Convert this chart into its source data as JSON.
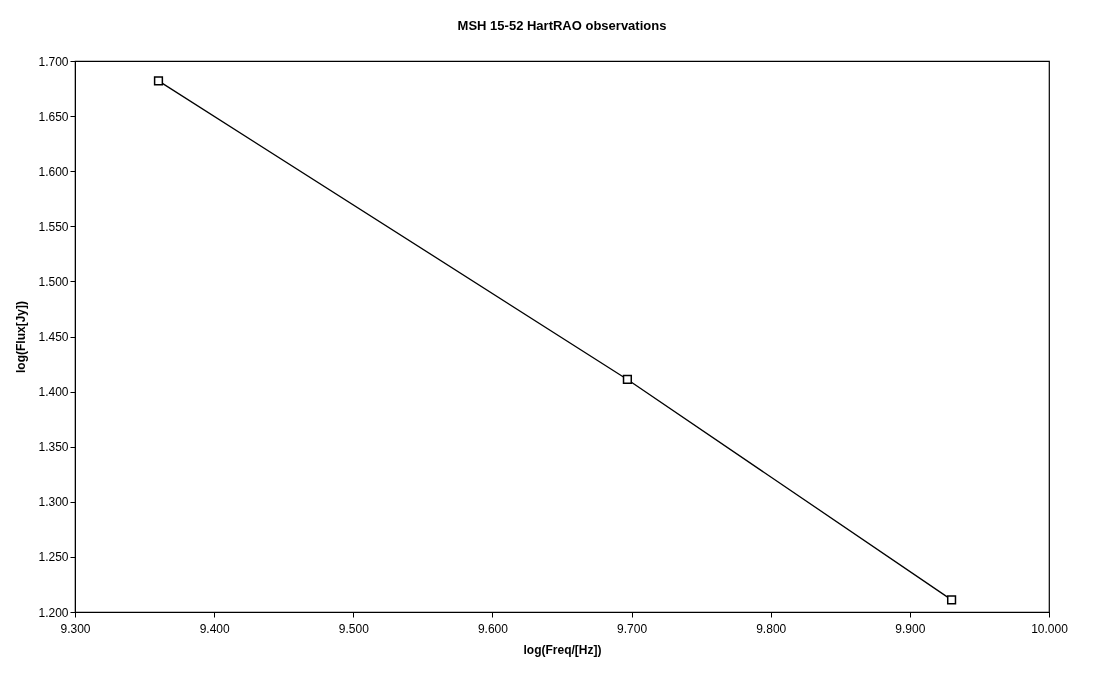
{
  "chart_data": {
    "type": "line",
    "title": "MSH 15-52 HartRAO observations",
    "xlabel": "log(Freq/[Hz])",
    "ylabel": "log(Flux[Jy])",
    "x": [
      9.36,
      9.697,
      9.93
    ],
    "series": [
      {
        "color": "#000000",
        "values": [
          1.682,
          1.411,
          1.211
        ]
      }
    ],
    "xlim": [
      9.3,
      10.0
    ],
    "xticks": [
      {
        "value": 9.3,
        "label": "9.300"
      },
      {
        "value": 9.4,
        "label": "9.400"
      },
      {
        "value": 9.5,
        "label": "9.500"
      },
      {
        "value": 9.6,
        "label": "9.600"
      },
      {
        "value": 9.7,
        "label": "9.700"
      },
      {
        "value": 9.8,
        "label": "9.800"
      },
      {
        "value": 9.9,
        "label": "9.900"
      },
      {
        "value": 10.0,
        "label": "10.000"
      }
    ],
    "ylim": [
      1.2,
      1.7
    ],
    "yticks": [
      {
        "value": 1.2,
        "label": "1.200"
      },
      {
        "value": 1.25,
        "label": "1.250"
      },
      {
        "value": 1.3,
        "label": "1.300"
      },
      {
        "value": 1.35,
        "label": "1.350"
      },
      {
        "value": 1.4,
        "label": "1.400"
      },
      {
        "value": 1.45,
        "label": "1.450"
      },
      {
        "value": 1.5,
        "label": "1.500"
      },
      {
        "value": 1.55,
        "label": "1.550"
      },
      {
        "value": 1.6,
        "label": "1.600"
      },
      {
        "value": 1.65,
        "label": "1.650"
      },
      {
        "value": 1.7,
        "label": "1.700"
      }
    ],
    "grid": false,
    "marker": "square",
    "line_style": "solid"
  }
}
